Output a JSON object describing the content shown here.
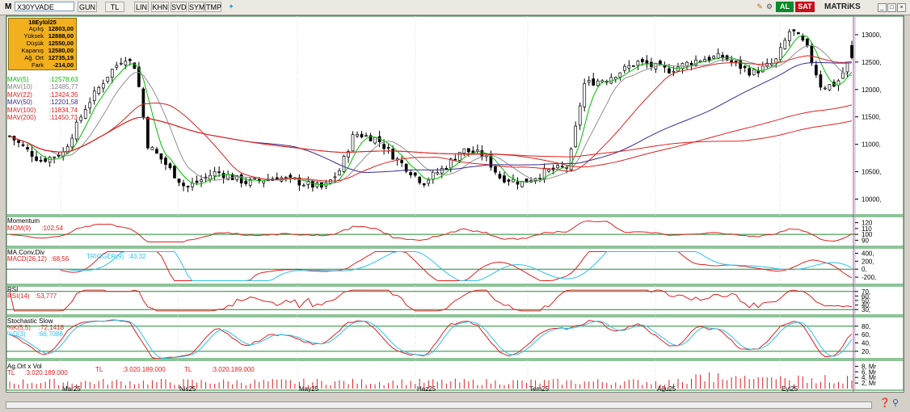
{
  "toolbar": {
    "logo": "M",
    "symbol": "X30YVADE",
    "buttons": [
      "GUN",
      "TL",
      "LIN",
      "KHN",
      "SVD",
      "SYM",
      "TMP"
    ],
    "al_label": "AL",
    "sat_label": "SAT",
    "brand": "MATRiKS",
    "colors": {
      "al": "#0a8a2a",
      "sat": "#c8101a"
    },
    "icons": [
      "twitter-icon",
      "edit-icon",
      "settings-icon",
      "minimize-icon",
      "maximize-icon",
      "close-icon"
    ]
  },
  "info": {
    "date": "18Eylül25",
    "rows": [
      {
        "label": "Açılış",
        "value": "12803,00"
      },
      {
        "label": "Yüksek",
        "value": "12888,00"
      },
      {
        "label": "Düşük",
        "value": "12550,00"
      },
      {
        "label": "Kapanış",
        "value": "12580,00"
      },
      {
        "label": "Ağ. Ort",
        "value": "12735,19"
      },
      {
        "label": "Fark",
        "value": "-214,00"
      }
    ]
  },
  "chart_data": [
    {
      "type": "candlestick",
      "title": "X30YVADE",
      "x_labels": [
        "Mar25",
        "Nis25",
        "May25",
        "Haz25",
        "Tem25",
        "Ağu25",
        "Eyl25"
      ],
      "y_ticks": [
        "13000,",
        "12500,",
        "12000,",
        "11500,",
        "11000,",
        "10500,",
        "10000,"
      ],
      "ylim": [
        9800,
        13250
      ],
      "last_bar": {
        "open": 12803,
        "high": 12888,
        "low": 12550,
        "close": 12580
      },
      "series": [
        {
          "name": "MAV(5)",
          "value": "12578,63",
          "color": "#00c000"
        },
        {
          "name": "MAV(10)",
          "value": "12485,77",
          "color": "#909090"
        },
        {
          "name": "MAV(22)",
          "value": "12424,35",
          "color": "#e02020"
        },
        {
          "name": "MAV(50)",
          "value": "12201,58",
          "color": "#3a2a90"
        },
        {
          "name": "MAV(100)",
          "value": "11834,74",
          "color": "#e02020"
        },
        {
          "name": "MAV(200)",
          "value": "11450,73",
          "color": "#e02020"
        }
      ]
    },
    {
      "type": "line",
      "title": "Momentum",
      "series": [
        {
          "name": "MOM(9)",
          "value": "102,54",
          "color": "#e02020"
        }
      ],
      "y_ticks": [
        "120",
        "110",
        "100",
        "90"
      ],
      "reference_line": 100
    },
    {
      "type": "line",
      "title": "MA.Conv.Div",
      "series": [
        {
          "name": "MACD(26,12)",
          "value": "68,56",
          "color": "#e02020"
        },
        {
          "name": "TRIGGER(9)",
          "value": "43,32",
          "color": "#30c0f0"
        }
      ],
      "y_ticks": [
        "400,",
        "200,",
        "0,",
        "-200,"
      ],
      "reference_line": 0
    },
    {
      "type": "line",
      "title": "RSI",
      "series": [
        {
          "name": "RSI(14)",
          "value": "53,777",
          "color": "#e02020"
        }
      ],
      "y_ticks": [
        "70,",
        "60,",
        "50,",
        "40,",
        "30,"
      ],
      "reference_lines": [
        70,
        30
      ]
    },
    {
      "type": "line",
      "title": "Stochastic Slow",
      "series": [
        {
          "name": "%K(5,5)",
          "value": "72,1418",
          "color": "#e02020"
        },
        {
          "name": "%D(3)",
          "value": "66,7088",
          "color": "#30c0f0"
        }
      ],
      "y_ticks": [
        "80,",
        "60,",
        "40,",
        "20,"
      ],
      "reference_lines": [
        80,
        20
      ]
    },
    {
      "type": "bar",
      "title": "Ag.Ort x Vol",
      "series": [
        {
          "name": "TL",
          "value": "3.020.189.000",
          "color": "#e02020"
        }
      ],
      "y_ticks": [
        "8, Mr",
        "6, Mr",
        "4, Mr",
        "2, Mr"
      ]
    }
  ],
  "legend_text": {
    "ma": [
      "MAV(5)",
      "MAV(10)",
      "MAV(22)",
      "MAV(50)",
      "MAV(100)",
      "MAV(200)"
    ],
    "ma_values": [
      ":12578,63",
      ":12485,77",
      ":12424,35",
      ":12201,58",
      ":11834,74",
      ":11450,73"
    ],
    "mom_title": "Momentum",
    "mom_line": "MOM(9)",
    "mom_value": ":102,54",
    "macd_title": "MA.Conv.Div",
    "macd_line": "MACD(26,12)",
    "macd_value": ":68,56",
    "trig_line": "TRIGGER(9)",
    "trig_value": ":43,32",
    "rsi_title": "RSI",
    "rsi_line": "RSI(14)",
    "rsi_value": ":53,777",
    "stoch_title": "Stochastic Slow",
    "k_line": "%K(5,5)",
    "k_value": ":72,1418",
    "d_line": "%D(3)",
    "d_value": ":66,7088",
    "vol_title": "Ag.Ort x Vol",
    "vol_line1": "TL",
    "vol_value1": ":3.020.189.000",
    "vol_line2": "TL",
    "vol_value2": ":3.020.189.000",
    "vol_line3": "TL",
    "vol_value3": ":3.020.189.000"
  }
}
